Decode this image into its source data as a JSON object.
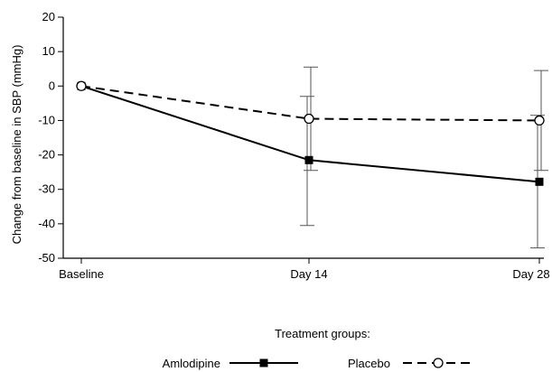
{
  "chart_data": {
    "type": "line",
    "ylabel": "Change from baseline in SBP (mmHg)",
    "xlabel": "",
    "categories": [
      "Baseline",
      "Day 14",
      "Day 28"
    ],
    "ylim": [
      -50,
      20
    ],
    "yticks": [
      20,
      10,
      0,
      -10,
      -20,
      -30,
      -40,
      -50
    ],
    "grid": false,
    "legend_title": "Treatment groups:",
    "legend_position": "bottom",
    "series": [
      {
        "name": "Amlodipine",
        "values": [
          0,
          -21.5,
          -27.8
        ],
        "error_low": [
          0,
          -40.5,
          -47
        ],
        "error_high": [
          0,
          -3,
          -8.5
        ],
        "marker": "filled-square",
        "line_style": "solid",
        "color": "#000000"
      },
      {
        "name": "Placebo",
        "values": [
          0,
          -9.5,
          -10
        ],
        "error_low": [
          0,
          -24.5,
          -24.5
        ],
        "error_high": [
          0,
          5.5,
          4.5
        ],
        "marker": "open-circle",
        "line_style": "dashed",
        "color": "#000000"
      }
    ]
  }
}
